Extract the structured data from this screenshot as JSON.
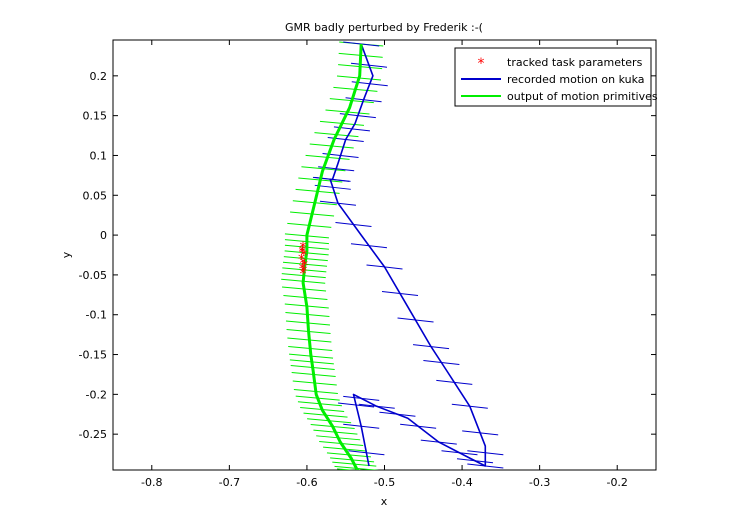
{
  "chart_data": {
    "type": "line",
    "title": "GMR badly perturbed by Frederik :-(",
    "xlabel": "x",
    "ylabel": "y",
    "xlim": [
      -0.85,
      -0.15
    ],
    "ylim": [
      -0.295,
      0.245
    ],
    "xticks": [
      -0.8,
      -0.7,
      -0.6,
      -0.5,
      -0.4,
      -0.3,
      -0.2
    ],
    "xtick_labels": [
      "-0.8",
      "-0.7",
      "-0.6",
      "-0.5",
      "-0.4",
      "-0.3",
      "-0.2"
    ],
    "yticks": [
      0.2,
      0.15,
      0.1,
      0.05,
      0,
      -0.05,
      -0.1,
      -0.15,
      -0.2,
      -0.25
    ],
    "ytick_labels": [
      "0.2",
      "0.15",
      "0.1",
      "0.05",
      "0",
      "-0.05",
      "-0.1",
      "-0.15",
      "-0.2",
      "-0.25"
    ],
    "grid": false,
    "legend_placement": "top-right",
    "series": [
      {
        "name": "tracked task parameters",
        "kind": "marker",
        "color": "#ff0000",
        "x": [
          -0.605,
          -0.606,
          -0.604,
          -0.607,
          -0.605,
          -0.603,
          -0.606,
          -0.604,
          -0.605,
          -0.606
        ],
        "y": [
          -0.015,
          -0.02,
          -0.025,
          -0.03,
          -0.035,
          -0.038,
          -0.042,
          -0.045,
          -0.048,
          -0.022
        ]
      },
      {
        "name": "recorded motion on kuka",
        "kind": "line",
        "color": "#0000cc",
        "x": [
          -0.53,
          -0.515,
          -0.527,
          -0.538,
          -0.55,
          -0.56,
          -0.567,
          -0.57,
          -0.56,
          -0.53,
          -0.5,
          -0.47,
          -0.44,
          -0.42,
          -0.39,
          -0.37,
          -0.37,
          -0.39,
          -0.43,
          -0.47,
          -0.51,
          -0.54,
          -0.53,
          -0.52
        ],
        "y": [
          0.24,
          0.2,
          0.17,
          0.14,
          0.12,
          0.09,
          0.07,
          0.07,
          0.04,
          0.0,
          -0.04,
          -0.09,
          -0.14,
          -0.17,
          -0.215,
          -0.265,
          -0.29,
          -0.28,
          -0.26,
          -0.23,
          -0.215,
          -0.2,
          -0.24,
          -0.29
        ]
      },
      {
        "name": "output of motion primitives",
        "kind": "line",
        "color": "#00ee00",
        "x": [
          -0.53,
          -0.532,
          -0.545,
          -0.565,
          -0.58,
          -0.59,
          -0.6,
          -0.6,
          -0.603,
          -0.605,
          -0.6,
          -0.598,
          -0.595,
          -0.592,
          -0.588,
          -0.58,
          -0.567,
          -0.557,
          -0.543,
          -0.535,
          -0.525,
          -0.518
        ],
        "y": [
          0.24,
          0.2,
          0.16,
          0.12,
          0.08,
          0.04,
          0.0,
          -0.02,
          -0.04,
          -0.06,
          -0.09,
          -0.12,
          -0.15,
          -0.17,
          -0.2,
          -0.22,
          -0.24,
          -0.26,
          -0.28,
          -0.295,
          -0.3,
          -0.305
        ]
      }
    ]
  }
}
